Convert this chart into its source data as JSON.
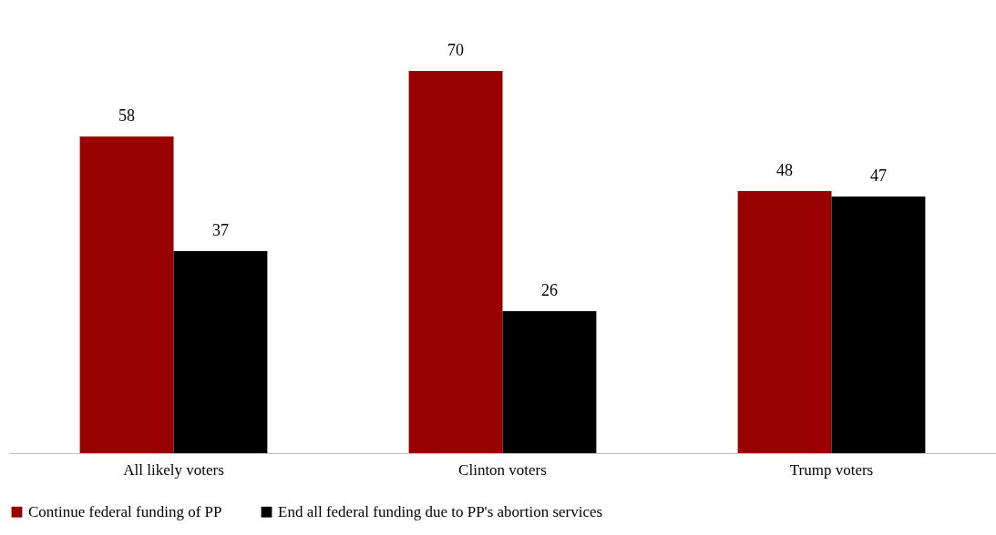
{
  "chart_data": {
    "type": "bar",
    "categories": [
      "All likely voters",
      "Clinton voters",
      "Trump voters"
    ],
    "series": [
      {
        "name": "Continue federal funding of PP",
        "color": "#990000",
        "values": [
          58,
          70,
          48
        ]
      },
      {
        "name": "End all federal funding due to PP's abortion services",
        "color": "#000000",
        "values": [
          37,
          26,
          47
        ]
      }
    ],
    "data_labels": true,
    "legend": "bottom",
    "grid": false
  }
}
